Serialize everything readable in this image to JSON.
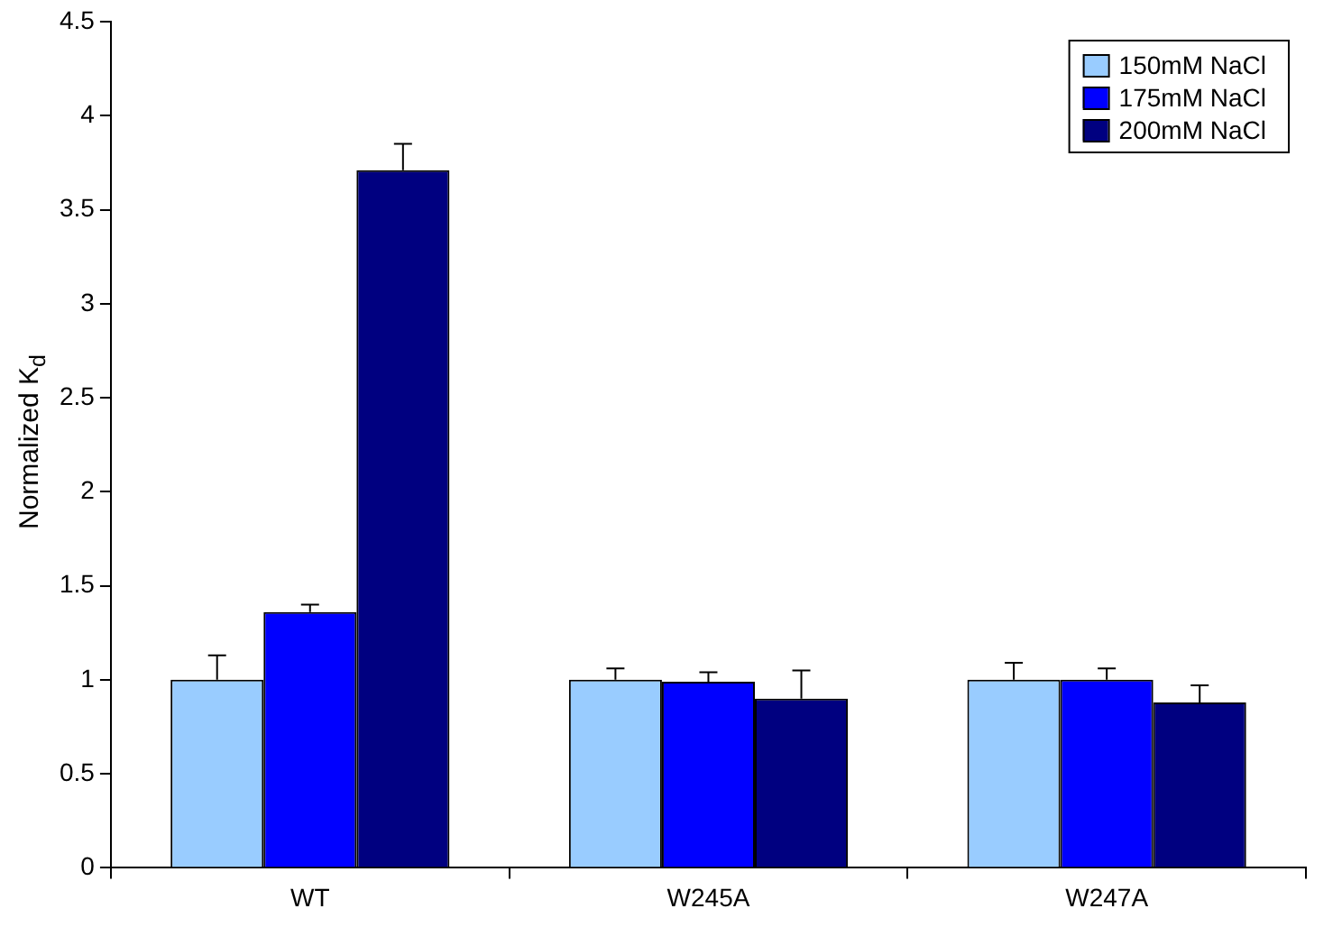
{
  "chart_data": {
    "type": "bar",
    "ylabel": "Normalized K$_{d}$",
    "categories": [
      "WT",
      "W245A",
      "W247A"
    ],
    "series": [
      {
        "name": "150mM NaCl",
        "color": "#99ccff",
        "values": [
          1.0,
          1.0,
          1.0
        ],
        "errors": [
          [
            1.0,
            1.13
          ],
          [
            1.0,
            1.06
          ],
          [
            1.0,
            1.09
          ]
        ]
      },
      {
        "name": "175mM NaCl",
        "color": "#0000ff",
        "values": [
          1.36,
          0.99,
          1.0
        ],
        "errors": [
          [
            1.36,
            1.4
          ],
          [
            0.99,
            1.04
          ],
          [
            1.0,
            1.06
          ]
        ]
      },
      {
        "name": "200mM NaCl",
        "color": "#000080",
        "values": [
          3.71,
          0.9,
          0.88
        ],
        "errors": [
          [
            3.71,
            3.85
          ],
          [
            0.9,
            1.05
          ],
          [
            0.88,
            0.97
          ]
        ]
      }
    ],
    "ylim": [
      0,
      4.5
    ],
    "yticks": [
      0,
      0.5,
      1,
      1.5,
      2,
      2.5,
      3,
      3.5,
      4,
      4.5
    ],
    "grid": false,
    "legend": "top right"
  }
}
